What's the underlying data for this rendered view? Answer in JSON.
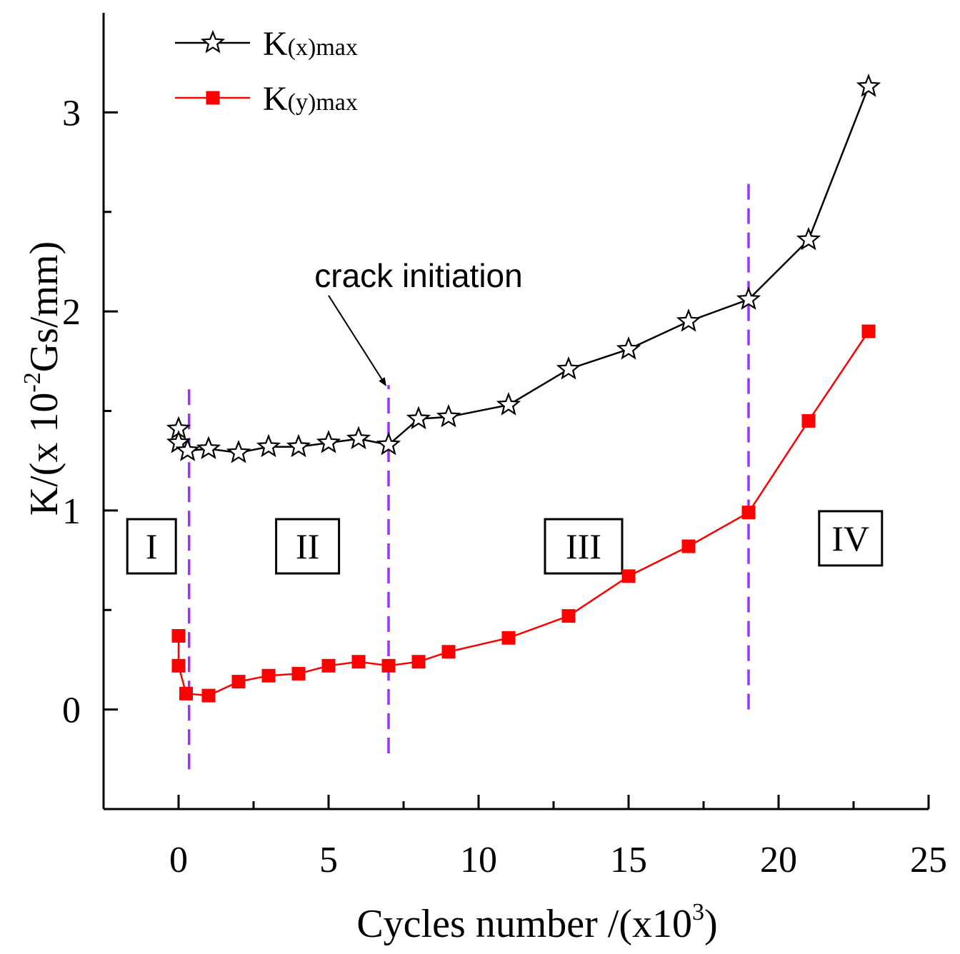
{
  "chart_data": {
    "type": "line",
    "xlabel": "Cycles number /(x10",
    "xlabel_sup": "3",
    "xlabel_suffix": ")",
    "ylabel": "K/(x 10",
    "ylabel_sup": "-2",
    "ylabel_suffix": "Gs/mm)",
    "xlim": [
      -2.5,
      25
    ],
    "ylim": [
      -0.5,
      3.5
    ],
    "x_ticks": [
      0,
      5,
      10,
      15,
      20,
      25
    ],
    "x_tick_labels": [
      "0",
      "5",
      "10",
      "15",
      "20",
      "25"
    ],
    "x_minor_ticks": [
      2.5,
      7.5,
      12.5,
      17.5,
      22.5
    ],
    "y_ticks": [
      0,
      1,
      2,
      3
    ],
    "y_tick_labels": [
      "0",
      "1",
      "2",
      "3"
    ],
    "y_minor_ticks": [
      -0.5,
      0.5,
      1.5,
      2.5
    ],
    "grid": false,
    "legend_position": "top-left",
    "series": [
      {
        "name": "K",
        "name_sub": "(x)max",
        "marker": "star-open",
        "color": "#000000",
        "points": [
          [
            0,
            1.41
          ],
          [
            0,
            1.34
          ],
          [
            0.3,
            1.3
          ],
          [
            1,
            1.31
          ],
          [
            2,
            1.29
          ],
          [
            3,
            1.32
          ],
          [
            4,
            1.32
          ],
          [
            5,
            1.34
          ],
          [
            6,
            1.36
          ],
          [
            7,
            1.33
          ],
          [
            8,
            1.46
          ],
          [
            9,
            1.47
          ],
          [
            11,
            1.53
          ],
          [
            13,
            1.71
          ],
          [
            15,
            1.81
          ],
          [
            17,
            1.95
          ],
          [
            19,
            2.06
          ],
          [
            21,
            2.36
          ],
          [
            23,
            3.13
          ]
        ]
      },
      {
        "name": "K",
        "name_sub": "(y)max",
        "marker": "square-filled",
        "color": "#ff0000",
        "points": [
          [
            0,
            0.37
          ],
          [
            0,
            0.22
          ],
          [
            0.25,
            0.08
          ],
          [
            1,
            0.07
          ],
          [
            2,
            0.14
          ],
          [
            3,
            0.17
          ],
          [
            4,
            0.18
          ],
          [
            5,
            0.22
          ],
          [
            6,
            0.24
          ],
          [
            7,
            0.22
          ],
          [
            8,
            0.24
          ],
          [
            9,
            0.29
          ],
          [
            11,
            0.36
          ],
          [
            13,
            0.47
          ],
          [
            15,
            0.67
          ],
          [
            17,
            0.82
          ],
          [
            19,
            0.99
          ],
          [
            21,
            1.45
          ],
          [
            23,
            1.9
          ]
        ]
      }
    ],
    "stage_lines": [
      {
        "x": 0.35,
        "y_from": -0.3,
        "y_to": 1.65
      },
      {
        "x": 7.0,
        "y_from": -0.22,
        "y_to": 1.63
      },
      {
        "x": 19.0,
        "y_from": 0.0,
        "y_to": 2.67
      }
    ],
    "stage_line_color": "#9b30ff",
    "stage_labels": [
      {
        "text": "I",
        "x": -0.9,
        "y": 0.82
      },
      {
        "text": "II",
        "x": 4.3,
        "y": 0.82
      },
      {
        "text": "III",
        "x": 13.5,
        "y": 0.82
      },
      {
        "text": "IV",
        "x": 22.4,
        "y": 0.86
      }
    ],
    "annotation": {
      "text": "crack initiation",
      "text_x": 8.0,
      "text_y": 2.18,
      "arrow_from": [
        5.0,
        2.08
      ],
      "arrow_to": [
        6.9,
        1.63
      ]
    }
  }
}
